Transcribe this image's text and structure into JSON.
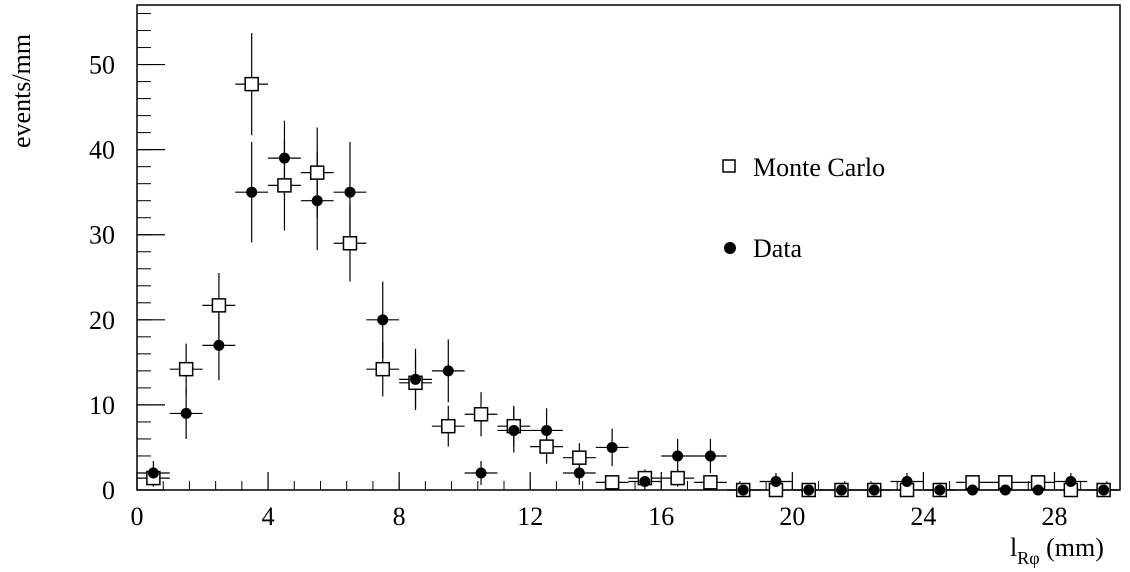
{
  "chart_data": {
    "type": "scatter",
    "xlabel_main": "l",
    "xlabel_sub": "Rφ",
    "xlabel_unit": " (mm)",
    "ylabel": "events/mm",
    "xlim": [
      0,
      30
    ],
    "ylim": [
      0,
      57
    ],
    "x_ticks": [
      0,
      4,
      8,
      12,
      16,
      20,
      24,
      28
    ],
    "y_ticks": [
      0,
      10,
      20,
      30,
      40,
      50
    ],
    "x_error": 0.5,
    "series": [
      {
        "name": "Monte Carlo",
        "marker": "open-square",
        "x": [
          0.5,
          1.5,
          2.5,
          3.5,
          4.5,
          5.5,
          6.5,
          7.5,
          8.5,
          9.5,
          10.5,
          11.5,
          12.5,
          13.5,
          14.5,
          15.5,
          16.5,
          17.5,
          18.5,
          19.5,
          20.5,
          21.5,
          22.5,
          23.5,
          24.5,
          25.5,
          26.5,
          27.5,
          28.5,
          29.5
        ],
        "y": [
          1.4,
          14.2,
          21.7,
          47.7,
          35.8,
          37.3,
          29.0,
          14.2,
          12.6,
          7.5,
          8.9,
          7.5,
          5.1,
          3.8,
          0.9,
          1.4,
          1.4,
          0.9,
          0,
          0,
          0,
          0,
          0,
          0,
          0,
          0.9,
          0.9,
          0.9,
          0,
          0
        ],
        "yerr": [
          1.0,
          3.0,
          3.8,
          6.0,
          5.3,
          5.3,
          4.5,
          3.2,
          3.0,
          2.4,
          2.6,
          2.4,
          2.0,
          1.7,
          0.8,
          1.0,
          1.0,
          0.8,
          0,
          0,
          0,
          0,
          0,
          0,
          0,
          0.8,
          0.8,
          0.8,
          0,
          0
        ]
      },
      {
        "name": "Data",
        "marker": "filled-circle",
        "x": [
          0.5,
          1.5,
          2.5,
          3.5,
          4.5,
          5.5,
          6.5,
          7.5,
          8.5,
          9.5,
          10.5,
          11.5,
          12.5,
          13.5,
          14.5,
          15.5,
          16.5,
          17.5,
          18.5,
          19.5,
          20.5,
          21.5,
          22.5,
          23.5,
          24.5,
          25.5,
          26.5,
          27.5,
          28.5,
          29.5
        ],
        "y": [
          2,
          9,
          17,
          35,
          39,
          34,
          35,
          20,
          13,
          14,
          2,
          7,
          7,
          2,
          5,
          1,
          4,
          4,
          0,
          1,
          0,
          0,
          0,
          1,
          0,
          0,
          0,
          0,
          1,
          0
        ],
        "yerr": [
          1.4,
          3.0,
          4.1,
          5.9,
          4.4,
          5.8,
          5.9,
          4.5,
          3.6,
          3.7,
          1.4,
          2.6,
          2.6,
          1.4,
          2.2,
          1.0,
          2.0,
          2.0,
          0,
          1.0,
          0,
          0,
          0,
          1.0,
          0,
          0,
          0,
          0,
          1.0,
          0
        ]
      }
    ],
    "legend": {
      "placement": "upper-right",
      "items": [
        {
          "label": "Monte Carlo",
          "marker": "open-square"
        },
        {
          "label": "Data",
          "marker": "filled-circle"
        }
      ]
    },
    "grid": false
  }
}
